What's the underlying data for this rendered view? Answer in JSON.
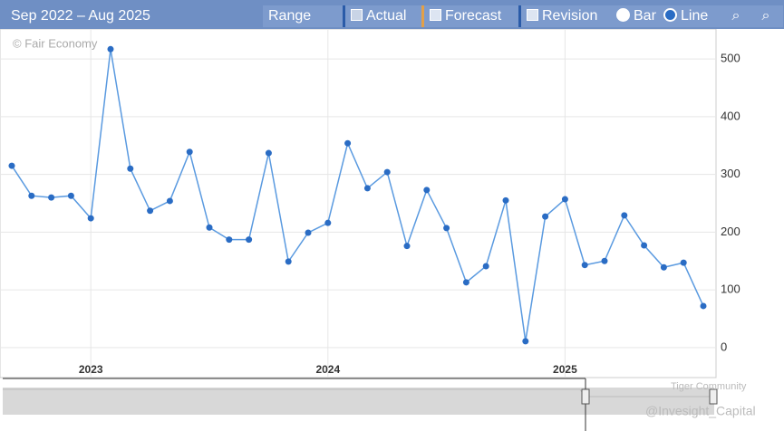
{
  "toolbar": {
    "range_text": "Sep 2022 – Aug 2025",
    "range_button": "Range",
    "actual": "Actual",
    "forecast": "Forecast",
    "revision": "Revision",
    "bar": "Bar",
    "line": "Line"
  },
  "chart_data": {
    "type": "line",
    "source_note": "© Fair Economy",
    "categories": [
      null,
      null,
      null,
      null,
      "2023",
      null,
      null,
      null,
      null,
      null,
      null,
      null,
      null,
      null,
      null,
      null,
      "2024",
      null,
      null,
      null,
      null,
      null,
      null,
      null,
      null,
      null,
      null,
      null,
      "2025",
      null,
      null,
      null,
      null,
      null,
      null,
      null
    ],
    "series": [
      {
        "name": "Actual",
        "color": "#2a6cc4",
        "values": [
          315,
          263,
          260,
          263,
          224,
          517,
          310,
          237,
          254,
          339,
          208,
          187,
          187,
          337,
          149,
          199,
          216,
          354,
          276,
          304,
          176,
          273,
          207,
          113,
          141,
          255,
          11,
          227,
          257,
          143,
          150,
          229,
          177,
          139,
          147,
          72
        ]
      }
    ],
    "ylim": [
      -52,
      552
    ],
    "yticks": [
      0,
      100,
      200,
      300,
      400,
      500
    ],
    "grid": true,
    "y_axis_side": "right"
  },
  "watermarks": [
    "Tiger Community",
    "@Invesight_Capital"
  ]
}
